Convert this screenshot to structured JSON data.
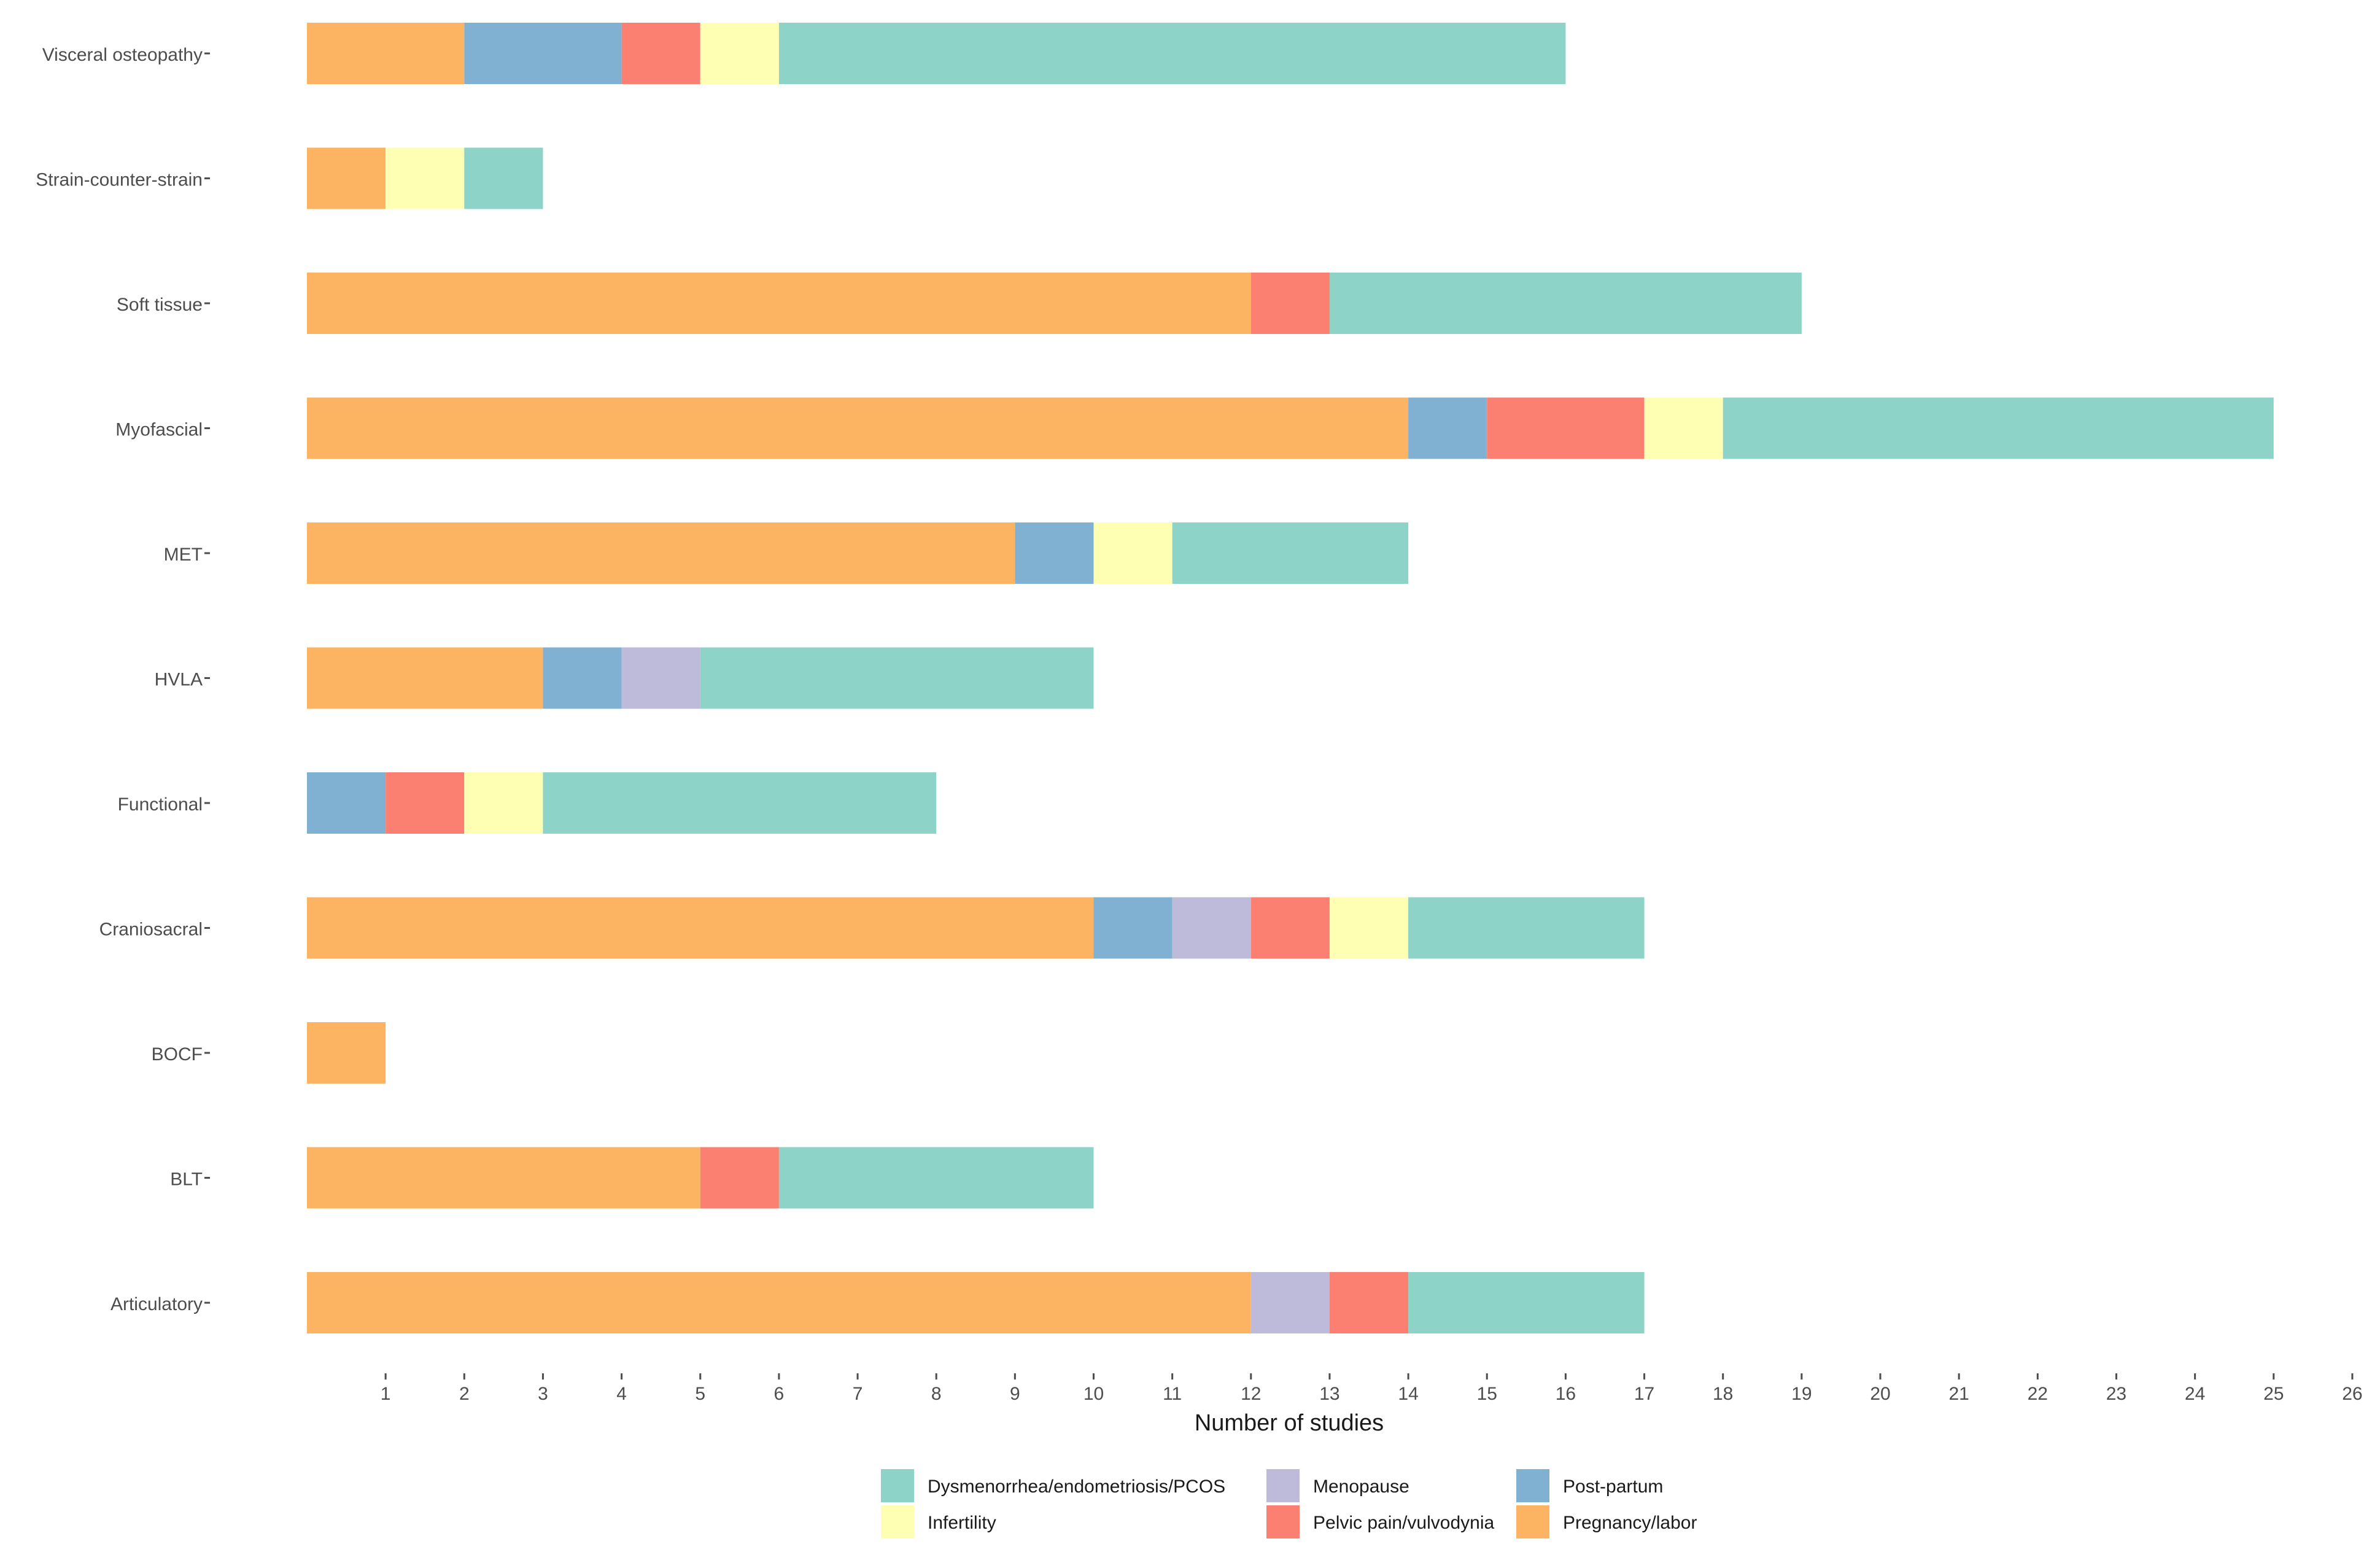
{
  "chart_data": {
    "type": "bar",
    "orientation": "horizontal",
    "stacked": true,
    "title": "",
    "xlabel": "Number of studies",
    "ylabel": "",
    "xlim": [
      0,
      26
    ],
    "x_ticks": [
      "1",
      "2",
      "3",
      "4",
      "5",
      "6",
      "7",
      "8",
      "9",
      "10",
      "11",
      "12",
      "13",
      "14",
      "15",
      "16",
      "17",
      "18",
      "19",
      "20",
      "21",
      "22",
      "23",
      "24",
      "25",
      "26"
    ],
    "grid": false,
    "legend_position": "bottom",
    "categories": [
      "Visceral osteopathy",
      "Strain-counter-strain",
      "Soft tissue",
      "Myofascial",
      "MET",
      "HVLA",
      "Functional",
      "Craniosacral",
      "BOCF",
      "BLT",
      "Articulatory"
    ],
    "series": [
      {
        "name": "Pregnancy/labor",
        "color": "#FDB462",
        "values": [
          2,
          1,
          12,
          14,
          9,
          3,
          0,
          10,
          1,
          5,
          12
        ]
      },
      {
        "name": "Post-partum",
        "color": "#80B1D3",
        "values": [
          2,
          0,
          0,
          1,
          1,
          1,
          1,
          1,
          0,
          0,
          0
        ]
      },
      {
        "name": "Menopause",
        "color": "#BEBADA",
        "values": [
          0,
          0,
          0,
          0,
          0,
          1,
          0,
          1,
          0,
          0,
          1
        ]
      },
      {
        "name": "Pelvic pain/vulvodynia",
        "color": "#FB8072",
        "values": [
          1,
          0,
          1,
          2,
          0,
          0,
          1,
          1,
          0,
          1,
          1
        ]
      },
      {
        "name": "Infertility",
        "color": "#FFFFB3",
        "values": [
          1,
          1,
          0,
          1,
          1,
          0,
          1,
          1,
          0,
          0,
          0
        ]
      },
      {
        "name": "Dysmenorrhea/endometriosis/PCOS",
        "color": "#8DD3C7",
        "values": [
          10,
          1,
          6,
          7,
          3,
          5,
          5,
          3,
          0,
          4,
          3
        ]
      }
    ],
    "legend_order": [
      "Dysmenorrhea/endometriosis/PCOS",
      "Infertility",
      "Menopause",
      "Pelvic pain/vulvodynia",
      "Post-partum",
      "Pregnancy/labor"
    ]
  }
}
